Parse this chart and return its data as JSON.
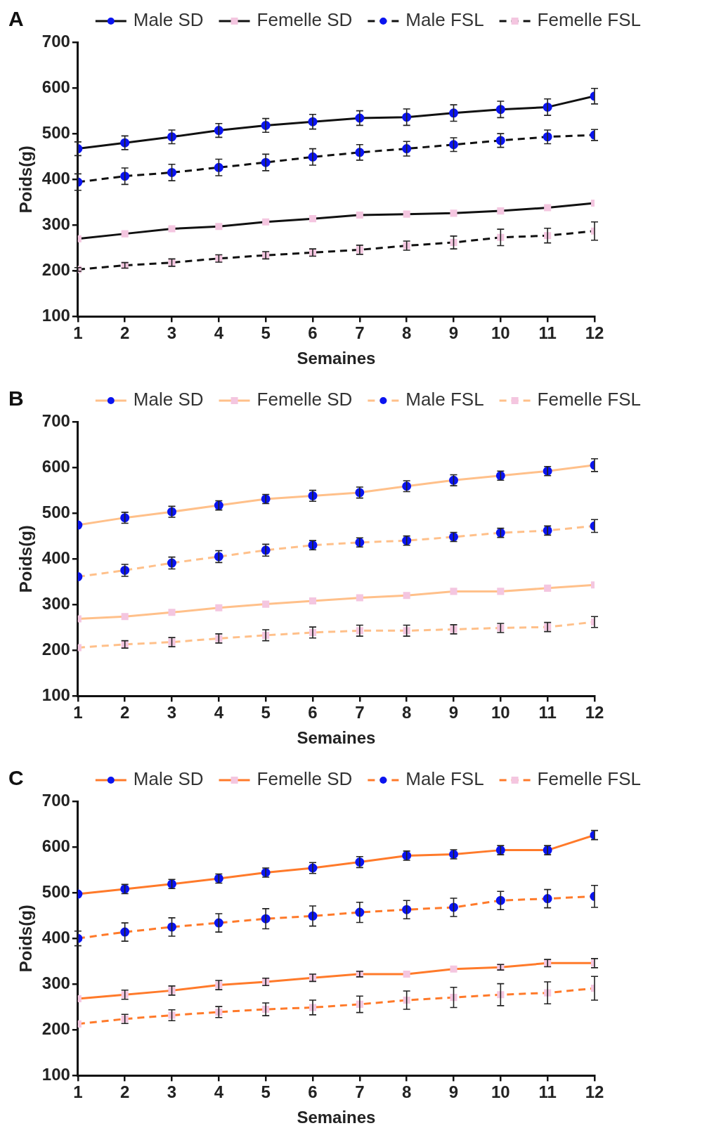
{
  "chart_data": [
    {
      "type": "line",
      "title": "A",
      "xlabel": "Semaines",
      "ylabel": "Poids(g)",
      "x": [
        1,
        2,
        3,
        4,
        5,
        6,
        7,
        8,
        9,
        10,
        11,
        12
      ],
      "xlim": [
        1,
        12
      ],
      "xticks": [
        1,
        2,
        3,
        4,
        5,
        6,
        7,
        8,
        9,
        10,
        11,
        12
      ],
      "ylim": [
        100,
        700
      ],
      "yticks": [
        100,
        200,
        300,
        400,
        500,
        600,
        700
      ],
      "grid": false,
      "legend": "top",
      "series": [
        {
          "name": "Male SD",
          "type": "line",
          "color": "#111111",
          "colors": [
            "#0a14f0",
            "#0a14f0",
            "#0a14f0",
            "#0a14f0",
            "#0a14f0",
            "#0a14f0",
            "#0a14f0",
            "#0a14f0",
            "#0a14f0",
            "#0a14f0",
            "#0a14f0",
            "#0a14f0"
          ],
          "marker": "circle",
          "line_style": "solid",
          "values": [
            467,
            480,
            493,
            507,
            518,
            526,
            534,
            536,
            545,
            553,
            558,
            582
          ],
          "errors": [
            15,
            15,
            15,
            15,
            15,
            16,
            16,
            18,
            18,
            18,
            18,
            17
          ]
        },
        {
          "name": "Femelle SD",
          "type": "line",
          "color": "#111111",
          "colors": [
            "#f4c6e0",
            "#f4c6e0",
            "#f4c6e0",
            "#f4c6e0",
            "#f4c6e0",
            "#f4c6e0",
            "#f4c6e0",
            "#f4c6e0",
            "#f4c6e0",
            "#f4c6e0",
            "#f4c6e0",
            "#f4c6e0"
          ],
          "marker": "square",
          "line_style": "solid",
          "values": [
            270,
            281,
            292,
            297,
            307,
            314,
            322,
            324,
            326,
            331,
            338,
            348
          ]
        },
        {
          "name": "Male FSL",
          "type": "line",
          "color": "#111111",
          "colors": [
            "#0a14f0",
            "#0a14f0",
            "#0a14f0",
            "#0a14f0",
            "#0a14f0",
            "#0a14f0",
            "#0a14f0",
            "#0a14f0",
            "#0a14f0",
            "#0a14f0",
            "#0a14f0",
            "#0a14f0"
          ],
          "marker": "circle",
          "line_style": "dashed",
          "values": [
            394,
            407,
            415,
            426,
            437,
            449,
            459,
            467,
            476,
            485,
            493,
            497
          ],
          "errors": [
            18,
            18,
            18,
            18,
            18,
            18,
            17,
            16,
            15,
            15,
            15,
            12
          ]
        },
        {
          "name": "Femelle FSL",
          "type": "line",
          "color": "#111111",
          "colors": [
            "#f4c6e0",
            "#f4c6e0",
            "#f4c6e0",
            "#f4c6e0",
            "#f4c6e0",
            "#f4c6e0",
            "#f4c6e0",
            "#f4c6e0",
            "#f4c6e0",
            "#f4c6e0",
            "#f4c6e0",
            "#f4c6e0"
          ],
          "marker": "square",
          "line_style": "dashed",
          "values": [
            203,
            212,
            218,
            227,
            234,
            240,
            246,
            255,
            262,
            273,
            277,
            287
          ],
          "errors": [
            4,
            6,
            8,
            8,
            8,
            8,
            10,
            10,
            14,
            18,
            16,
            20
          ]
        }
      ]
    },
    {
      "type": "line",
      "title": "B",
      "xlabel": "Semaines",
      "ylabel": "Poids(g)",
      "x": [
        1,
        2,
        3,
        4,
        5,
        6,
        7,
        8,
        9,
        10,
        11,
        12
      ],
      "xlim": [
        1,
        12
      ],
      "xticks": [
        1,
        2,
        3,
        4,
        5,
        6,
        7,
        8,
        9,
        10,
        11,
        12
      ],
      "ylim": [
        100,
        700
      ],
      "yticks": [
        100,
        200,
        300,
        400,
        500,
        600,
        700
      ],
      "grid": false,
      "legend": "top",
      "series": [
        {
          "name": "Male SD",
          "type": "line",
          "color": "#ffc08a",
          "colors": [
            "#0a14f0",
            "#0a14f0",
            "#0a14f0",
            "#0a14f0",
            "#0a14f0",
            "#0a14f0",
            "#0a14f0",
            "#0a14f0",
            "#0a14f0",
            "#0a14f0",
            "#0a14f0",
            "#0a14f0"
          ],
          "marker": "circle",
          "line_style": "solid",
          "values": [
            474,
            490,
            503,
            517,
            531,
            538,
            545,
            559,
            572,
            582,
            592,
            605
          ],
          "errors": [
            null,
            12,
            12,
            10,
            10,
            12,
            12,
            12,
            12,
            10,
            10,
            14
          ]
        },
        {
          "name": "Femelle SD",
          "type": "line",
          "color": "#ffc08a",
          "colors": [
            "#f4c6e0",
            "#f4c6e0",
            "#f4c6e0",
            "#f4c6e0",
            "#f4c6e0",
            "#f4c6e0",
            "#f4c6e0",
            "#f4c6e0",
            "#f4c6e0",
            "#f4c6e0",
            "#f4c6e0",
            "#f4c6e0"
          ],
          "marker": "square",
          "line_style": "solid",
          "values": [
            269,
            274,
            283,
            293,
            301,
            308,
            315,
            320,
            329,
            329,
            336,
            343
          ]
        },
        {
          "name": "Male FSL",
          "type": "line",
          "color": "#ffc08a",
          "colors": [
            "#0a14f0",
            "#0a14f0",
            "#0a14f0",
            "#0a14f0",
            "#0a14f0",
            "#0a14f0",
            "#0a14f0",
            "#0a14f0",
            "#0a14f0",
            "#0a14f0",
            "#0a14f0",
            "#0a14f0"
          ],
          "marker": "circle",
          "line_style": "dashed",
          "values": [
            361,
            375,
            391,
            405,
            419,
            430,
            436,
            440,
            448,
            457,
            462,
            472
          ],
          "errors": [
            null,
            13,
            13,
            13,
            13,
            10,
            10,
            10,
            10,
            10,
            10,
            14
          ]
        },
        {
          "name": "Femelle FSL",
          "type": "line",
          "color": "#ffc08a",
          "colors": [
            "#f4c6e0",
            "#f4c6e0",
            "#f4c6e0",
            "#f4c6e0",
            "#f4c6e0",
            "#f4c6e0",
            "#f4c6e0",
            "#f4c6e0",
            "#f4c6e0",
            "#f4c6e0",
            "#f4c6e0",
            "#f4c6e0"
          ],
          "marker": "square",
          "line_style": "dashed",
          "values": [
            206,
            213,
            218,
            226,
            233,
            239,
            243,
            243,
            246,
            249,
            251,
            262
          ],
          "errors": [
            null,
            8,
            10,
            10,
            12,
            12,
            12,
            12,
            10,
            10,
            10,
            12
          ]
        }
      ]
    },
    {
      "type": "line",
      "title": "C",
      "xlabel": "Semaines",
      "ylabel": "Poids(g)",
      "x": [
        1,
        2,
        3,
        4,
        5,
        6,
        7,
        8,
        9,
        10,
        11,
        12
      ],
      "xlim": [
        1,
        12
      ],
      "xticks": [
        1,
        2,
        3,
        4,
        5,
        6,
        7,
        8,
        9,
        10,
        11,
        12
      ],
      "ylim": [
        100,
        700
      ],
      "yticks": [
        100,
        200,
        300,
        400,
        500,
        600,
        700
      ],
      "grid": false,
      "legend": "top",
      "series": [
        {
          "name": "Male SD",
          "type": "line",
          "color": "#ff7a2a",
          "colors": [
            "#0a14f0",
            "#0a14f0",
            "#0a14f0",
            "#0a14f0",
            "#0a14f0",
            "#0a14f0",
            "#0a14f0",
            "#0a14f0",
            "#0a14f0",
            "#0a14f0",
            "#0a14f0",
            "#0a14f0"
          ],
          "marker": "circle",
          "line_style": "solid",
          "values": [
            497,
            508,
            519,
            531,
            544,
            554,
            567,
            581,
            584,
            593,
            593,
            626
          ],
          "errors": [
            null,
            10,
            10,
            10,
            10,
            12,
            12,
            10,
            10,
            10,
            10,
            10
          ]
        },
        {
          "name": "Femelle SD",
          "type": "line",
          "color": "#ff7a2a",
          "colors": [
            "#f4c6e0",
            "#f4c6e0",
            "#f4c6e0",
            "#f4c6e0",
            "#f4c6e0",
            "#f4c6e0",
            "#f4c6e0",
            "#f4c6e0",
            "#f4c6e0",
            "#f4c6e0",
            "#f4c6e0",
            "#f4c6e0"
          ],
          "marker": "square",
          "line_style": "solid",
          "values": [
            268,
            277,
            286,
            298,
            305,
            314,
            322,
            322,
            333,
            337,
            346,
            346
          ],
          "errors": [
            null,
            10,
            10,
            10,
            8,
            8,
            6,
            null,
            null,
            6,
            8,
            10
          ]
        },
        {
          "name": "Male FSL",
          "type": "line",
          "color": "#ff7a2a",
          "colors": [
            "#0a14f0",
            "#0a14f0",
            "#0a14f0",
            "#0a14f0",
            "#0a14f0",
            "#0a14f0",
            "#0a14f0",
            "#0a14f0",
            "#0a14f0",
            "#0a14f0",
            "#0a14f0",
            "#0a14f0"
          ],
          "marker": "circle",
          "line_style": "dashed",
          "values": [
            400,
            414,
            425,
            434,
            443,
            449,
            457,
            463,
            468,
            483,
            487,
            492
          ],
          "errors": [
            16,
            20,
            20,
            20,
            22,
            22,
            22,
            20,
            20,
            20,
            20,
            24
          ]
        },
        {
          "name": "Femelle FSL",
          "type": "line",
          "color": "#ff7a2a",
          "colors": [
            "#f4c6e0",
            "#f4c6e0",
            "#f4c6e0",
            "#f4c6e0",
            "#f4c6e0",
            "#f4c6e0",
            "#f4c6e0",
            "#f4c6e0",
            "#f4c6e0",
            "#f4c6e0",
            "#f4c6e0",
            "#f4c6e0"
          ],
          "marker": "square",
          "line_style": "dashed",
          "values": [
            213,
            224,
            232,
            239,
            245,
            249,
            256,
            265,
            271,
            277,
            281,
            291
          ],
          "errors": [
            null,
            10,
            12,
            12,
            14,
            16,
            18,
            20,
            22,
            24,
            24,
            26
          ]
        }
      ]
    }
  ]
}
